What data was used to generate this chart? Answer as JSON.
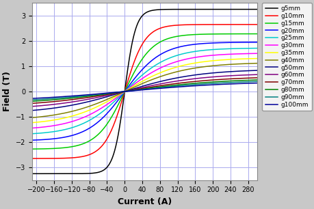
{
  "series": [
    {
      "label": "g5mm",
      "color": "#000000",
      "Bsat": 3.25,
      "k": 0.04
    },
    {
      "label": "g10mm",
      "color": "#ff0000",
      "Bsat": 2.65,
      "k": 0.022
    },
    {
      "label": "g15mm",
      "color": "#00cc00",
      "Bsat": 2.28,
      "k": 0.016
    },
    {
      "label": "g20mm",
      "color": "#0000ff",
      "Bsat": 1.95,
      "k": 0.012
    },
    {
      "label": "g25mm",
      "color": "#00cccc",
      "Bsat": 1.72,
      "k": 0.01
    },
    {
      "label": "g30mm",
      "color": "#ff00ff",
      "Bsat": 1.52,
      "k": 0.0088
    },
    {
      "label": "g35mm",
      "color": "#ffff00",
      "Bsat": 1.33,
      "k": 0.0078
    },
    {
      "label": "g40mm",
      "color": "#808000",
      "Bsat": 1.15,
      "k": 0.007
    },
    {
      "label": "g50mm",
      "color": "#000080",
      "Bsat": 0.88,
      "k": 0.006
    },
    {
      "label": "g60mm",
      "color": "#800080",
      "Bsat": 0.72,
      "k": 0.0055
    },
    {
      "label": "g70mm",
      "color": "#800000",
      "Bsat": 0.6,
      "k": 0.005
    },
    {
      "label": "g80mm",
      "color": "#008000",
      "Bsat": 0.52,
      "k": 0.0046
    },
    {
      "label": "g90mm",
      "color": "#008080",
      "Bsat": 0.46,
      "k": 0.0043
    },
    {
      "label": "g100mm",
      "color": "#000099",
      "Bsat": 0.4,
      "k": 0.004
    }
  ],
  "xlim": [
    -210,
    300
  ],
  "ylim": [
    -3.5,
    3.5
  ],
  "xticks": [
    -200,
    -160,
    -120,
    -80,
    -40,
    0,
    40,
    80,
    120,
    160,
    200,
    240,
    280
  ],
  "yticks": [
    -3,
    -2,
    -1,
    0,
    1,
    2,
    3
  ],
  "xlabel": "Current (A)",
  "ylabel": "Field (T)",
  "grid_color": "#aaaaee",
  "bg_color": "#ffffff",
  "figure_bg": "#c8c8c8"
}
